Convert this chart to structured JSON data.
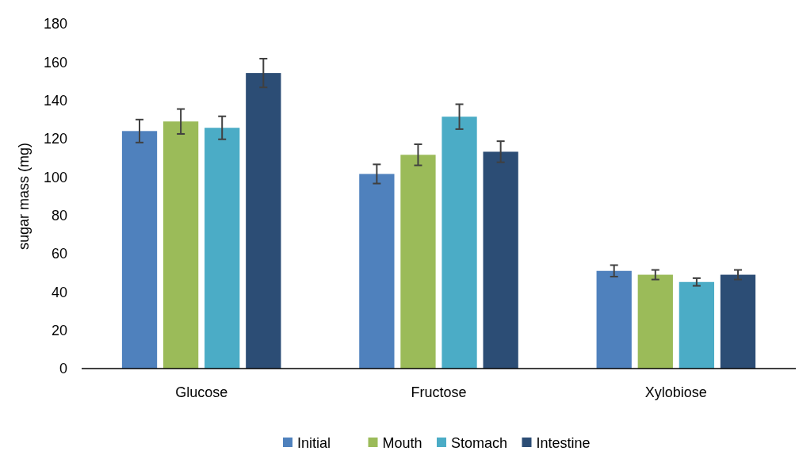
{
  "chart_data": {
    "type": "bar",
    "ylabel": "sugar mass (mg)",
    "categories": [
      "Glucose",
      "Fructose",
      "Xylobiose"
    ],
    "series": [
      {
        "name": "Initial",
        "color": "#4f81bd",
        "values": [
          124,
          101.6,
          51
        ],
        "errors": [
          6,
          5,
          3
        ]
      },
      {
        "name": "Mouth",
        "color": "#9bbb59",
        "values": [
          129,
          111.6,
          49
        ],
        "errors": [
          6.5,
          5.5,
          2.5
        ]
      },
      {
        "name": "Stomach",
        "color": "#4bacc6",
        "values": [
          125.7,
          131.5,
          45.2
        ],
        "errors": [
          6,
          6.5,
          2
        ]
      },
      {
        "name": "Intestine",
        "color": "#2c4d75",
        "values": [
          154.3,
          113.2,
          49
        ],
        "errors": [
          7.5,
          5.5,
          2.5
        ]
      }
    ],
    "ylim": [
      0,
      180
    ],
    "yticks": [
      0,
      20,
      40,
      60,
      80,
      100,
      120,
      140,
      160,
      180
    ],
    "grid": false,
    "legend": "bottom"
  }
}
